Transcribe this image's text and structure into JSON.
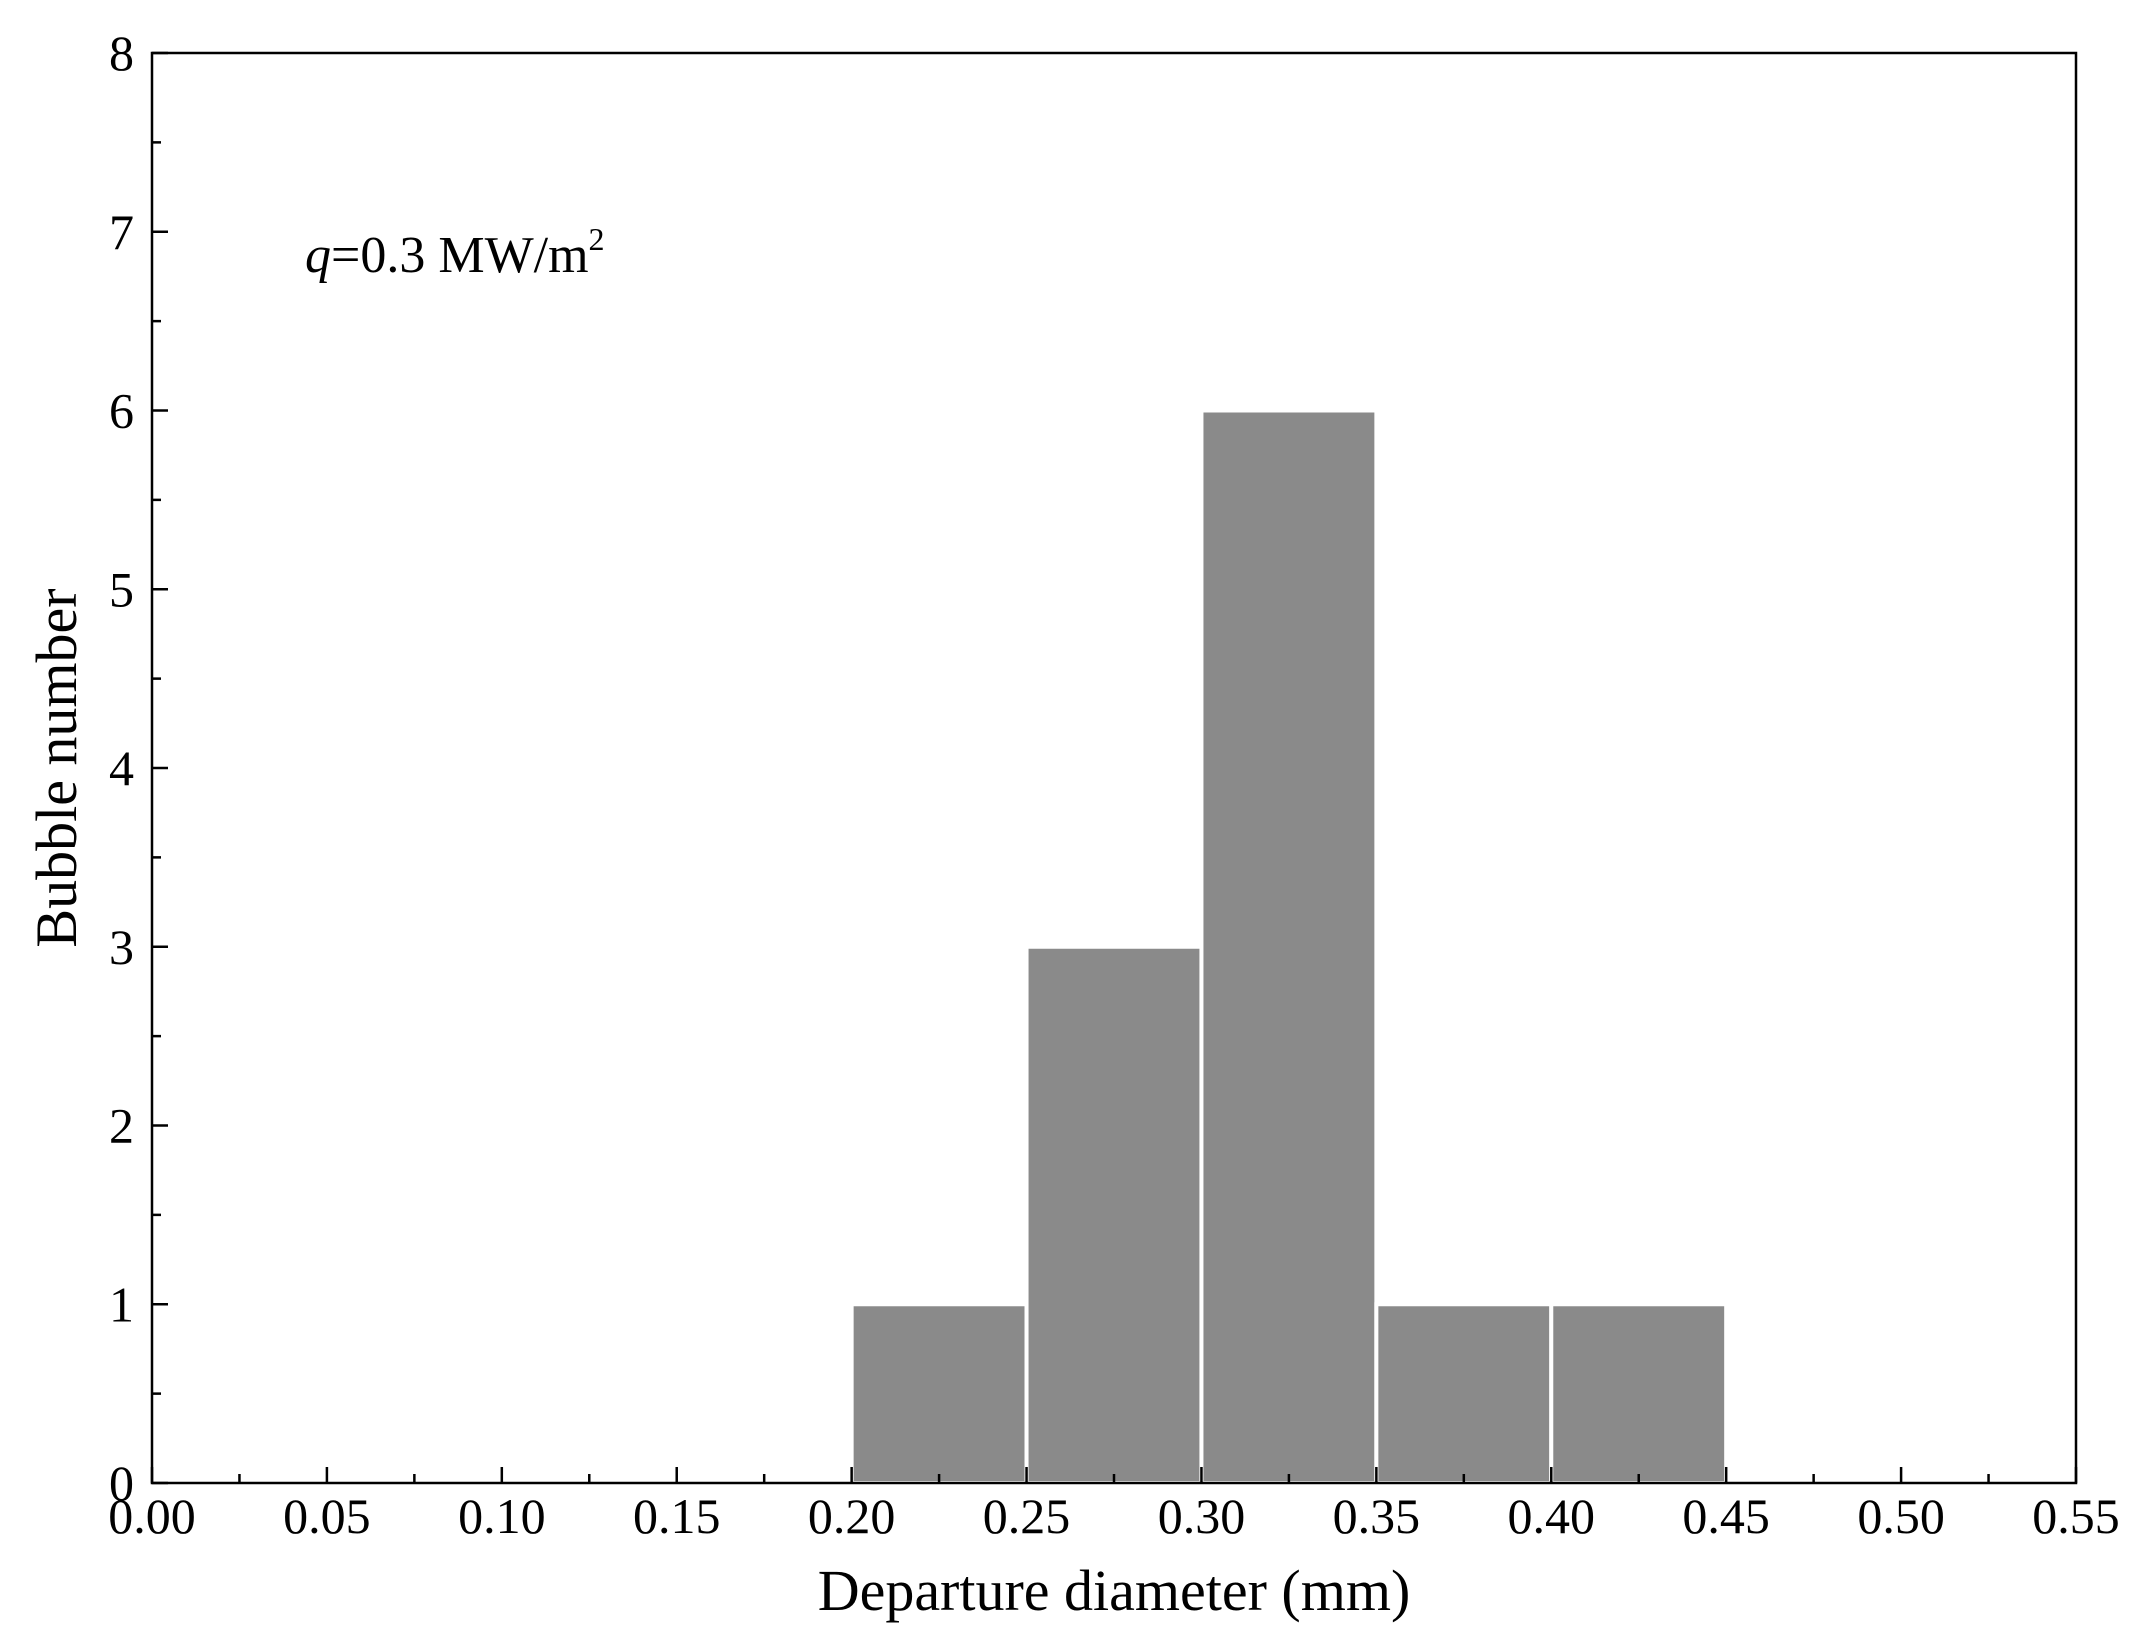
{
  "chart_data": {
    "type": "bar",
    "bins": [
      {
        "x_start": 0.2,
        "x_end": 0.25,
        "value": 1
      },
      {
        "x_start": 0.25,
        "x_end": 0.3,
        "value": 3
      },
      {
        "x_start": 0.3,
        "x_end": 0.35,
        "value": 6
      },
      {
        "x_start": 0.35,
        "x_end": 0.4,
        "value": 1
      },
      {
        "x_start": 0.4,
        "x_end": 0.45,
        "value": 1
      }
    ],
    "xlabel": "Departure diameter (mm)",
    "ylabel": "Bubble number",
    "xlim": [
      0.0,
      0.55
    ],
    "ylim": [
      0,
      8
    ],
    "x_ticks": [
      "0.00",
      "0.05",
      "0.10",
      "0.15",
      "0.20",
      "0.25",
      "0.30",
      "0.35",
      "0.40",
      "0.45",
      "0.50",
      "0.55"
    ],
    "y_ticks": [
      "0",
      "1",
      "2",
      "3",
      "4",
      "5",
      "6",
      "7",
      "8"
    ],
    "annotation": {
      "symbol": "q",
      "text": "=0.3 MW/m",
      "superscript": "2"
    },
    "grid": false,
    "bar_color": "#8a8a8a"
  }
}
